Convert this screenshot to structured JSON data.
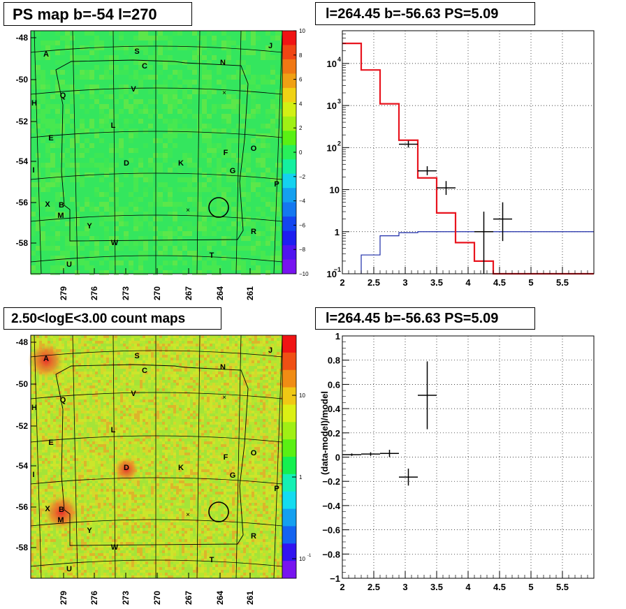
{
  "panels": {
    "ps_map": {
      "title": "PS map b=-54 l=270",
      "y_ticks": [
        "-48",
        "-50",
        "-52",
        "-54",
        "-56",
        "-58"
      ],
      "x_ticks": [
        "279",
        "276",
        "273",
        "270",
        "267",
        "264",
        "261"
      ],
      "colorbar_ticks": [
        "10",
        "8",
        "6",
        "4",
        "2",
        "0",
        "−2",
        "−4",
        "−6",
        "−8",
        "−10"
      ],
      "colors": {
        "field": "#34e65e",
        "accent_low": "#28d77a",
        "accent_high": "#9be640"
      }
    },
    "count_map": {
      "title": "2.50<logE<3.00 count maps",
      "y_ticks": [
        "-48",
        "-50",
        "-52",
        "-54",
        "-56",
        "-58"
      ],
      "x_ticks": [
        "279",
        "276",
        "273",
        "270",
        "267",
        "264",
        "261"
      ],
      "colorbar_ticks": [
        "10",
        "1",
        "10"
      ],
      "colorbar_exp": "-1",
      "colors": {
        "field": "#aee630",
        "hot": "#e8302a"
      }
    }
  },
  "region_labels": [
    {
      "text": "A"
    },
    {
      "text": "S"
    },
    {
      "text": "J"
    },
    {
      "text": "C"
    },
    {
      "text": "N"
    },
    {
      "text": "Q"
    },
    {
      "text": "V"
    },
    {
      "text": "H"
    },
    {
      "text": "L"
    },
    {
      "text": "E"
    },
    {
      "text": "F"
    },
    {
      "text": "O"
    },
    {
      "text": "D"
    },
    {
      "text": "K"
    },
    {
      "text": "G"
    },
    {
      "text": "I"
    },
    {
      "text": "P"
    },
    {
      "text": "X"
    },
    {
      "text": "B"
    },
    {
      "text": "M"
    },
    {
      "text": "Y"
    },
    {
      "text": "R"
    },
    {
      "text": "W"
    },
    {
      "text": "T"
    },
    {
      "text": "U"
    }
  ],
  "chart_data": [
    {
      "type": "line",
      "panel": "spectrum",
      "title": "l=264.45 b=-56.63 PS=5.09",
      "xlabel": "",
      "ylabel": "",
      "xlim": [
        2,
        6
      ],
      "ylim": [
        0.1,
        60000
      ],
      "log_y": true,
      "grid": true,
      "x_ticks": [
        "2",
        "2.5",
        "3",
        "3.5",
        "4",
        "4.5",
        "5",
        "5.5"
      ],
      "y_ticks": [
        {
          "b": "10",
          "e": "4"
        },
        {
          "b": "10",
          "e": "3"
        },
        {
          "b": "10",
          "e": "2"
        },
        {
          "b": "10",
          "e": ""
        },
        {
          "b": "1",
          "e": ""
        },
        {
          "b": "10",
          "e": "−1"
        }
      ],
      "series": [
        {
          "style": "red-step",
          "edges": [
            2,
            2.3,
            2.6,
            2.9,
            3.2,
            3.5,
            3.8,
            4.1,
            4.4,
            6
          ],
          "values": [
            30000,
            7000,
            1100,
            150,
            19,
            2.8,
            0.55,
            0.2,
            0.09
          ]
        },
        {
          "style": "blue-step",
          "edges": [
            2,
            2.3,
            2.6,
            2.9,
            3.2,
            3.5,
            6
          ],
          "values": [
            0.05,
            0.28,
            0.8,
            0.95,
            1.0,
            1.0
          ]
        }
      ],
      "points": [
        {
          "x": 3.05,
          "y": 120,
          "xerr": 0.15,
          "ylo": 100,
          "yhi": 145
        },
        {
          "x": 3.35,
          "y": 28,
          "xerr": 0.15,
          "ylo": 22,
          "yhi": 36
        },
        {
          "x": 3.65,
          "y": 11,
          "xerr": 0.15,
          "ylo": 7.5,
          "yhi": 16
        },
        {
          "x": 4.25,
          "y": 1.0,
          "xerr": 0.15,
          "ylo": 0.1,
          "yhi": 3.0
        },
        {
          "x": 4.55,
          "y": 2.0,
          "xerr": 0.15,
          "ylo": 0.6,
          "yhi": 5.0
        }
      ]
    },
    {
      "type": "scatter",
      "panel": "residual",
      "title": "l=264.45 b=-56.63 PS=5.09",
      "xlabel": "",
      "ylabel": "(data-model)/model",
      "xlim": [
        2,
        6
      ],
      "ylim": [
        -1,
        1
      ],
      "grid": true,
      "x_ticks": [
        "2",
        "2.5",
        "3",
        "3.5",
        "4",
        "4.5",
        "5",
        "5.5"
      ],
      "y_ticks": [
        "1",
        "0.8",
        "0.6",
        "0.4",
        "0.2",
        "0",
        "−0.2",
        "−0.4",
        "−0.6",
        "−0.8",
        "−1"
      ],
      "points": [
        {
          "x": 2.15,
          "y": 0.02,
          "xerr": 0.15,
          "yerr": 0.01
        },
        {
          "x": 2.45,
          "y": 0.025,
          "xerr": 0.15,
          "yerr": 0.015
        },
        {
          "x": 2.75,
          "y": 0.03,
          "xerr": 0.15,
          "yerr": 0.03
        },
        {
          "x": 3.05,
          "y": -0.165,
          "xerr": 0.15,
          "yerr": 0.07
        },
        {
          "x": 3.35,
          "y": 0.51,
          "xerr": 0.15,
          "yerr": 0.28
        }
      ]
    }
  ]
}
